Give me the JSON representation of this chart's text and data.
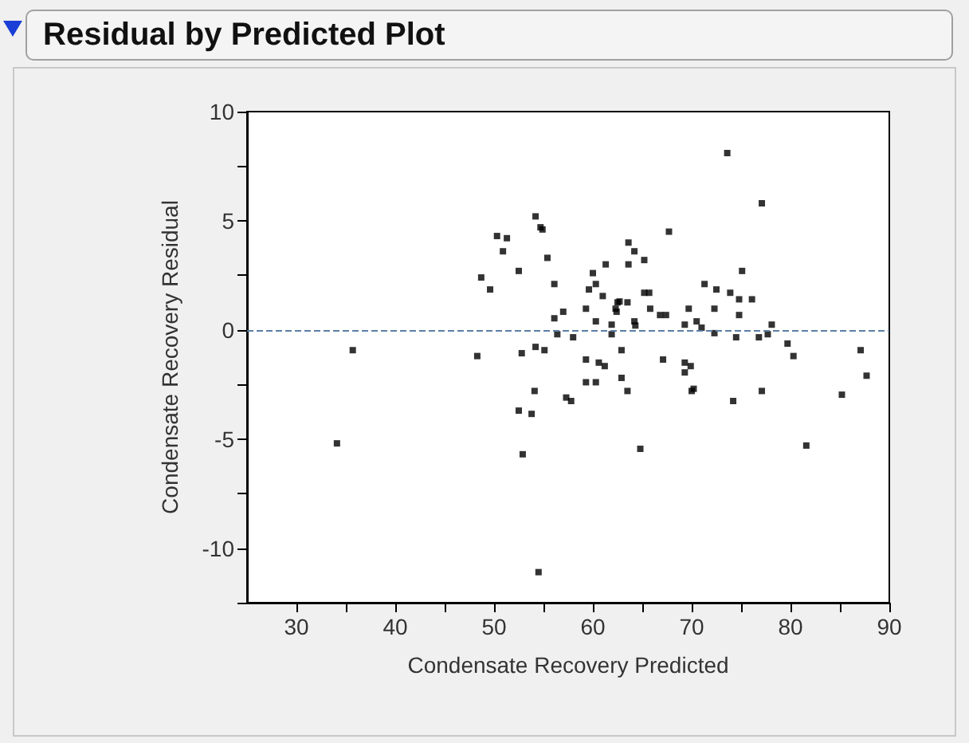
{
  "chart_data": {
    "type": "scatter",
    "title": "Residual by Predicted Plot",
    "xlabel": "Condensate Recovery Predicted",
    "ylabel": "Condensate Recovery Residual",
    "x": [
      48.7,
      49.6,
      35.7,
      48.3,
      34.1,
      54.2,
      54.7,
      54.9,
      50.3,
      51.3,
      50.9,
      55.4,
      67.7,
      63.6,
      64.2,
      65.2,
      63.6,
      61.3,
      52.5,
      60.0,
      60.3,
      59.6,
      61.0,
      56.1,
      65.2,
      65.7,
      62.5,
      62.7,
      63.5,
      62.3,
      62.4,
      59.3,
      65.8,
      57.0,
      66.8,
      67.4,
      69.7,
      56.1,
      60.3,
      64.2,
      64.3,
      61.9,
      69.3,
      70.5,
      56.4,
      61.9,
      58.0,
      54.2,
      55.1,
      52.8,
      62.9,
      67.1,
      59.3,
      60.6,
      61.2,
      69.3,
      69.9,
      69.3,
      59.3,
      60.3,
      62.9,
      63.5,
      54.1,
      70.0,
      70.2,
      57.3,
      57.8,
      52.5,
      53.8,
      52.9,
      64.8,
      54.5,
      73.6,
      77.1,
      75.1,
      71.3,
      72.5,
      73.9,
      74.8,
      76.1,
      72.3,
      74.8,
      71.0,
      72.3,
      74.5,
      76.8,
      77.7,
      78.1,
      79.7,
      80.3,
      87.1,
      87.7,
      74.2,
      77.1,
      85.2,
      81.6
    ],
    "series": [
      {
        "color": "#000000",
        "values": [
          2.4,
          1.85,
          -0.93,
          -1.2,
          -5.2,
          5.2,
          4.7,
          4.6,
          4.3,
          4.2,
          3.6,
          3.3,
          4.5,
          4.0,
          3.6,
          3.2,
          3.0,
          3.0,
          2.7,
          2.6,
          2.1,
          1.85,
          1.55,
          2.1,
          1.7,
          1.7,
          1.26,
          1.3,
          1.26,
          0.97,
          0.83,
          0.97,
          0.97,
          0.83,
          0.68,
          0.68,
          0.97,
          0.53,
          0.39,
          0.39,
          0.2,
          0.24,
          0.24,
          0.39,
          -0.2,
          -0.2,
          -0.34,
          -0.78,
          -0.93,
          -1.07,
          -0.93,
          -1.36,
          -1.36,
          -1.5,
          -1.66,
          -1.5,
          -1.66,
          -1.95,
          -2.4,
          -2.4,
          -2.2,
          -2.8,
          -2.8,
          -2.8,
          -2.7,
          -3.1,
          -3.26,
          -3.7,
          -3.85,
          -5.7,
          -5.45,
          -11.1,
          8.1,
          5.8,
          2.7,
          2.1,
          1.85,
          1.7,
          1.4,
          1.4,
          0.97,
          0.68,
          0.1,
          -0.15,
          -0.34,
          -0.34,
          -0.2,
          0.24,
          -0.63,
          -1.2,
          -0.93,
          -2.1,
          -3.26,
          -2.8,
          -2.97,
          -5.3
        ]
      }
    ],
    "xlim": [
      25,
      90
    ],
    "xticks": [
      30,
      {
        "value": 35,
        "label": null
      },
      40,
      {
        "value": 45,
        "label": null
      },
      50,
      {
        "value": 55,
        "label": null
      },
      60,
      {
        "value": 65,
        "label": null
      },
      70,
      {
        "value": 75,
        "label": null
      },
      80,
      {
        "value": 85,
        "label": null
      },
      90
    ],
    "ylim": [
      -12.5,
      10
    ],
    "yticks": [
      {
        "value": -12.5,
        "label": null
      },
      -10,
      {
        "value": -7.5,
        "label": null
      },
      -5,
      {
        "value": -2.5,
        "label": null
      },
      0,
      {
        "value": 2.5,
        "label": null
      },
      5,
      {
        "value": 7.5,
        "label": null
      },
      10
    ],
    "ref_lines": [
      {
        "axis": "y",
        "value": 0,
        "color": "#5b7fa6",
        "line_style": "dashed"
      }
    ],
    "marker": "square"
  }
}
